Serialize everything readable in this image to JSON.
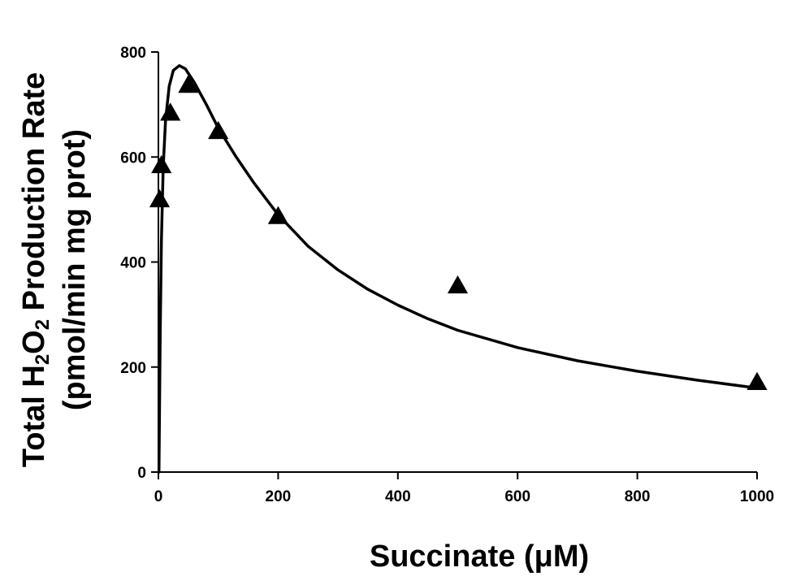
{
  "chart_data": {
    "type": "scatter",
    "xlabel": "Succinate (μM)",
    "ylabel_lines": [
      "Total H₂O₂ Production Rate",
      "(pmol/min mg prot)"
    ],
    "ylabel_line1_parts": [
      "Total H",
      "2",
      "O",
      "2",
      " Production Rate"
    ],
    "xlim": [
      0,
      1000
    ],
    "ylim": [
      0,
      800
    ],
    "x_ticks": [
      0,
      200,
      400,
      600,
      800,
      1000
    ],
    "y_ticks": [
      0,
      200,
      400,
      600,
      800
    ],
    "grid": false,
    "legend": false,
    "series": [
      {
        "kind": "markers",
        "marker": "triangle",
        "color": "#000000",
        "points": [
          {
            "x": 2,
            "y": 520
          },
          {
            "x": 5,
            "y": 585
          },
          {
            "x": 20,
            "y": 685
          },
          {
            "x": 50,
            "y": 738
          },
          {
            "x": 100,
            "y": 650
          },
          {
            "x": 200,
            "y": 488
          },
          {
            "x": 500,
            "y": 356
          },
          {
            "x": 1000,
            "y": 172
          }
        ]
      },
      {
        "kind": "line",
        "color": "#000000",
        "points": [
          {
            "x": 1,
            "y": 0
          },
          {
            "x": 3,
            "y": 260
          },
          {
            "x": 5,
            "y": 440
          },
          {
            "x": 8,
            "y": 580
          },
          {
            "x": 12,
            "y": 670
          },
          {
            "x": 18,
            "y": 735
          },
          {
            "x": 25,
            "y": 765
          },
          {
            "x": 35,
            "y": 774
          },
          {
            "x": 45,
            "y": 768
          },
          {
            "x": 60,
            "y": 742
          },
          {
            "x": 80,
            "y": 700
          },
          {
            "x": 100,
            "y": 655
          },
          {
            "x": 130,
            "y": 600
          },
          {
            "x": 160,
            "y": 550
          },
          {
            "x": 200,
            "y": 490
          },
          {
            "x": 250,
            "y": 430
          },
          {
            "x": 300,
            "y": 385
          },
          {
            "x": 350,
            "y": 348
          },
          {
            "x": 400,
            "y": 318
          },
          {
            "x": 450,
            "y": 292
          },
          {
            "x": 500,
            "y": 270
          },
          {
            "x": 600,
            "y": 237
          },
          {
            "x": 700,
            "y": 212
          },
          {
            "x": 800,
            "y": 192
          },
          {
            "x": 900,
            "y": 175
          },
          {
            "x": 1000,
            "y": 160
          }
        ]
      }
    ]
  }
}
